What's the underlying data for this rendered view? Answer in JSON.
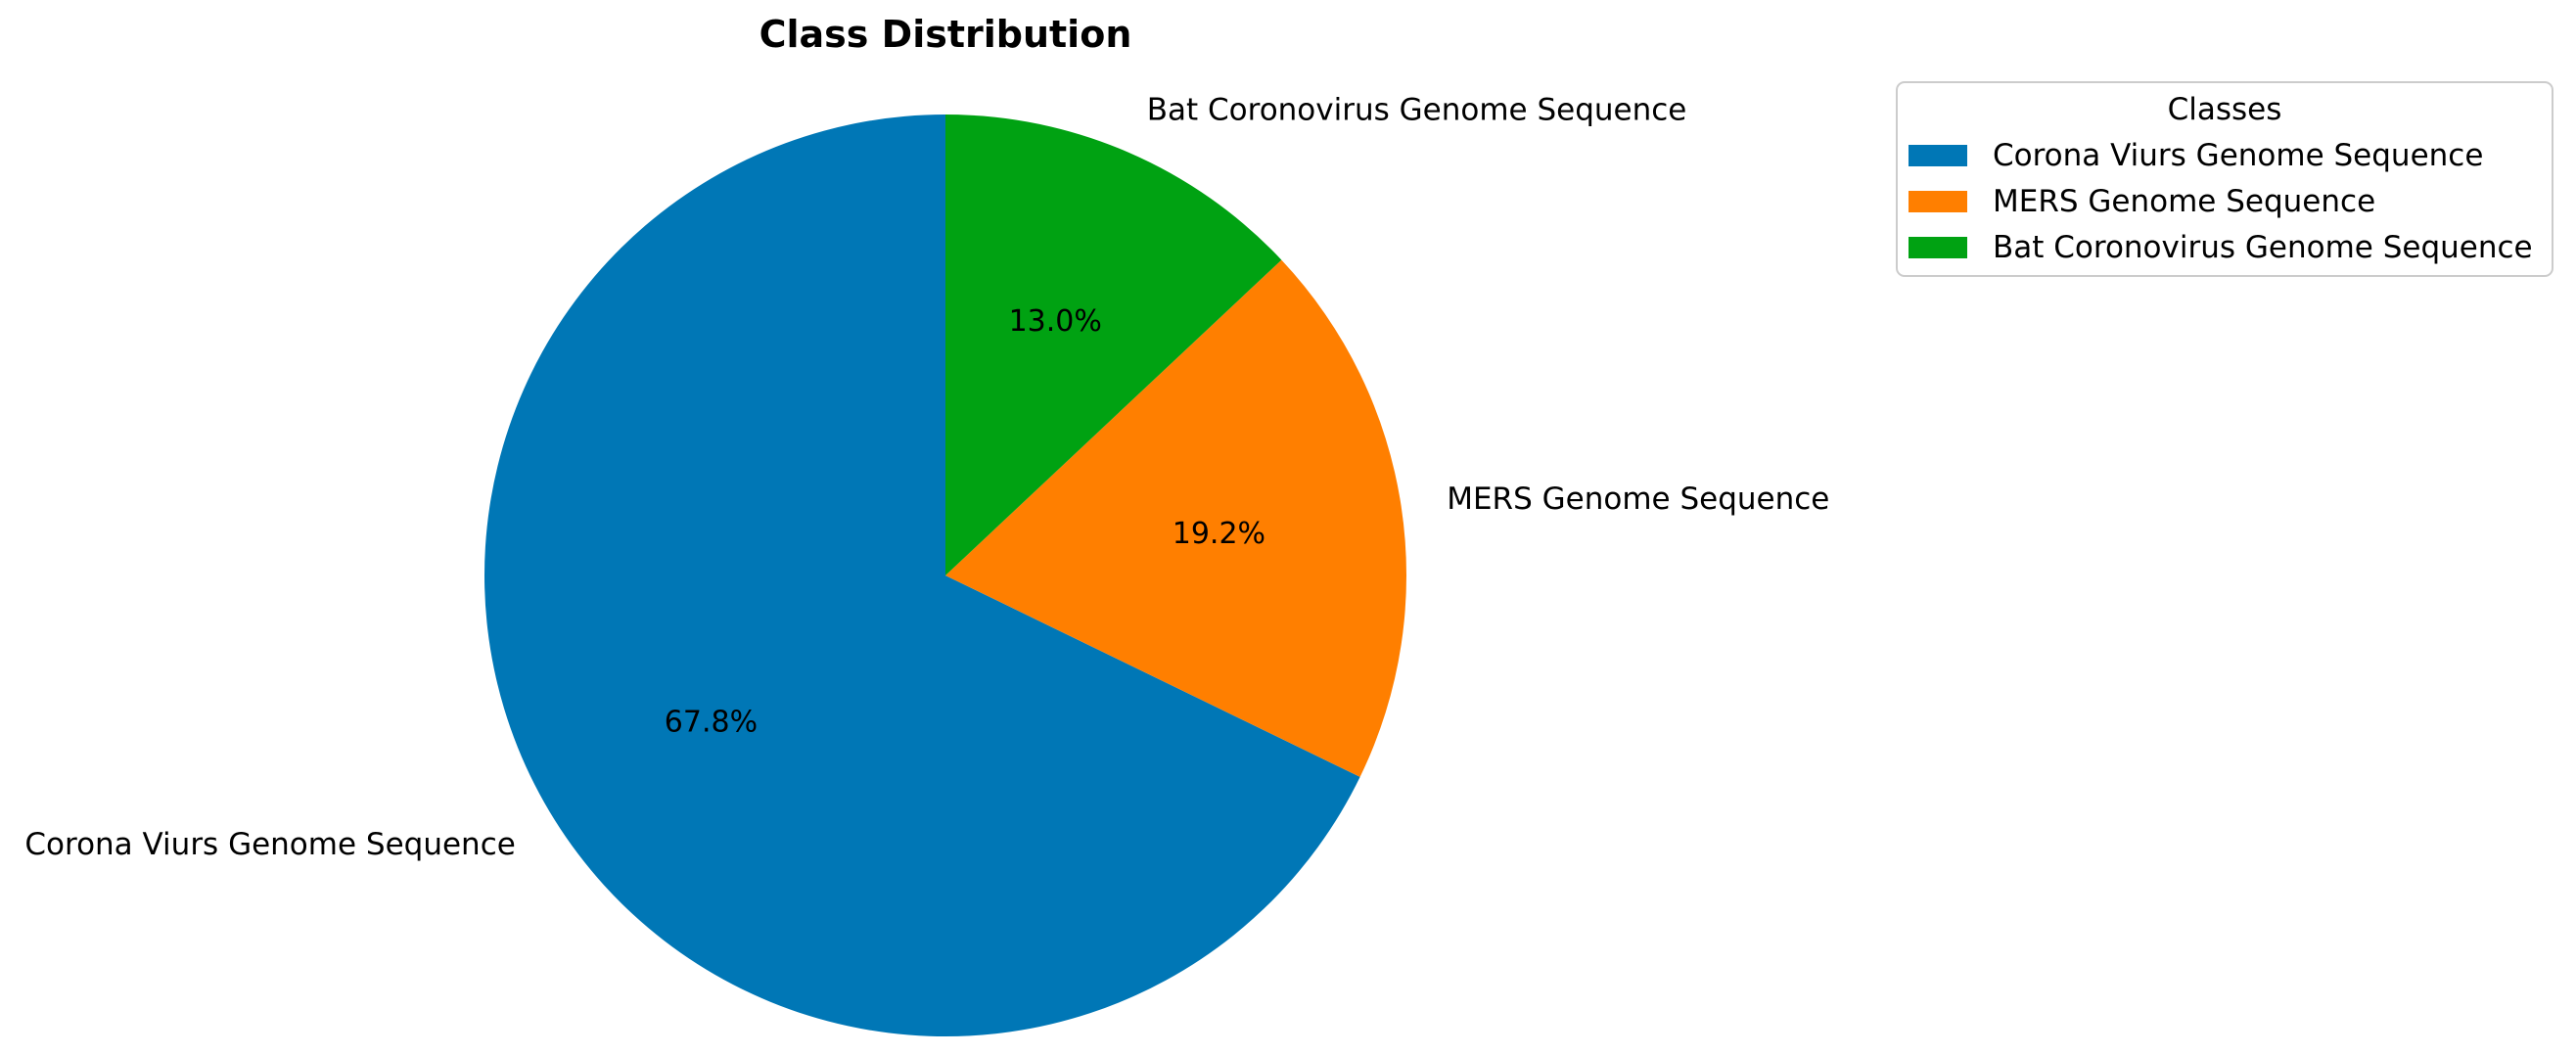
{
  "chart_data": {
    "type": "pie",
    "title": "Class Distribution",
    "labels": [
      "Corona Viurs Genome Sequence",
      "MERS Genome Sequence",
      "Bat Coronovirus Genome Sequence"
    ],
    "values": [
      67.8,
      19.2,
      13.0
    ],
    "percent_labels": [
      "67.8%",
      "19.2%",
      "13.0%"
    ],
    "colors": [
      "#0077b6",
      "#ff7f00",
      "#00a212"
    ],
    "start_angle_deg": 90,
    "direction": "counterclockwise",
    "legend": {
      "title": "Classes",
      "placement": "top-right",
      "entries": [
        "Corona Viurs Genome Sequence",
        "MERS Genome Sequence",
        "Bat Coronovirus Genome Sequence"
      ]
    }
  }
}
